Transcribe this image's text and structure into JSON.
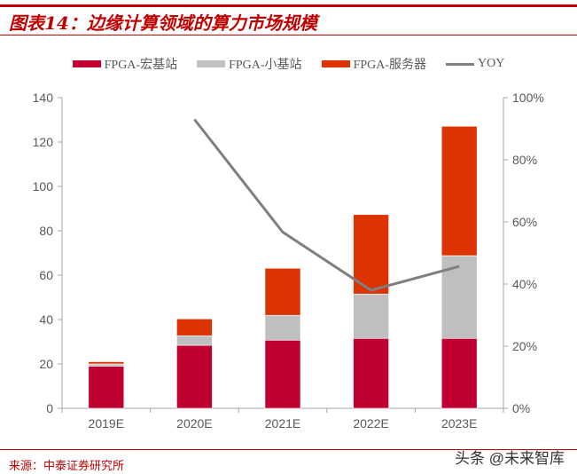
{
  "header": {
    "title": "图表14：边缘计算领域的算力市场规模"
  },
  "footer": {
    "source": "来源：中泰证券研究所",
    "watermark": "头条 @未来智库"
  },
  "chart_data": {
    "type": "bar",
    "stacked": true,
    "categories": [
      "2019E",
      "2020E",
      "2021E",
      "2022E",
      "2023E"
    ],
    "series": [
      {
        "name": "FPGA-宏基站",
        "type": "bar",
        "axis": "left",
        "color": "#c00030",
        "values": [
          19,
          28.4,
          30.7,
          31.5,
          31.5
        ]
      },
      {
        "name": "FPGA-小基站",
        "type": "bar",
        "axis": "left",
        "color": "#bfbfbf",
        "values": [
          1,
          4.3,
          11.2,
          20,
          37.3
        ]
      },
      {
        "name": "FPGA-服务器",
        "type": "bar",
        "axis": "left",
        "color": "#dd3300",
        "values": [
          1,
          7.6,
          21.2,
          35.8,
          58.3
        ]
      },
      {
        "name": "YOY",
        "type": "line",
        "axis": "right",
        "color": "#7f7f7f",
        "values": [
          null,
          93,
          56.7,
          38,
          45.7
        ]
      }
    ],
    "yaxis_left": {
      "range": [
        0,
        140
      ],
      "ticks": [
        "0",
        "20",
        "40",
        "60",
        "80",
        "100",
        "120",
        "140"
      ]
    },
    "yaxis_right": {
      "range": [
        0,
        100
      ],
      "ticks": [
        "0%",
        "20%",
        "40%",
        "60%",
        "80%",
        "100%"
      ]
    },
    "grid": false,
    "legend": "top"
  }
}
